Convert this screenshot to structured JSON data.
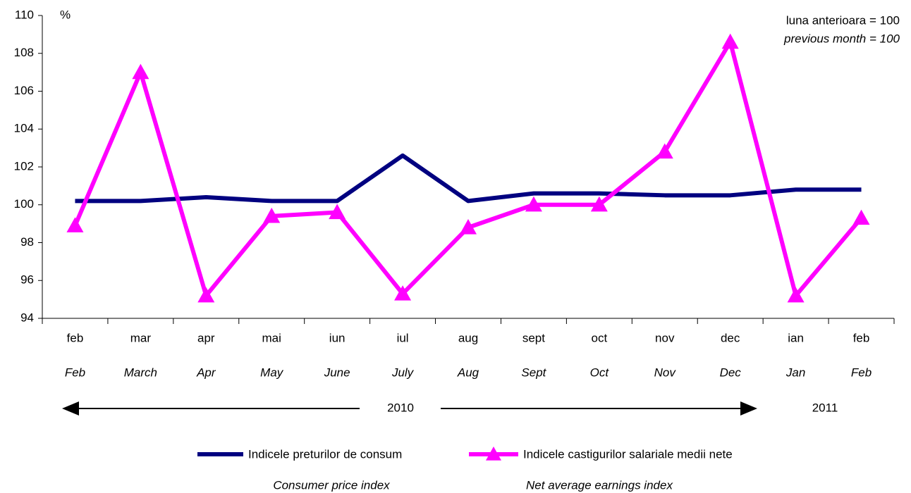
{
  "chart_data": {
    "type": "line",
    "y_unit": "%",
    "annotation": [
      "luna anterioara = 100",
      "previous month = 100"
    ],
    "categories": [
      "feb",
      "mar",
      "apr",
      "mai",
      "iun",
      "iul",
      "aug",
      "sept",
      "oct",
      "nov",
      "dec",
      "ian",
      "feb"
    ],
    "categories_en": [
      "Feb",
      "March",
      "Apr",
      "May",
      "June",
      "July",
      "Aug",
      "Sept",
      "Oct",
      "Nov",
      "Dec",
      "Jan",
      "Feb"
    ],
    "years": [
      "2010",
      "2011"
    ],
    "series": [
      {
        "name": "Indicele preturilor de consum",
        "name_en": "Consumer price index",
        "color": "#000080",
        "values": [
          100.2,
          100.2,
          100.4,
          100.2,
          100.2,
          102.6,
          100.2,
          100.6,
          100.6,
          100.5,
          100.5,
          100.8,
          100.8
        ]
      },
      {
        "name": "Indicele castigurilor salariale medii nete",
        "name_en": "Net average earnings index",
        "color": "#ff00ff",
        "values": [
          98.9,
          107.0,
          95.2,
          99.4,
          99.6,
          95.3,
          98.8,
          100.0,
          100.0,
          102.8,
          108.6,
          95.2,
          99.3
        ]
      }
    ],
    "ylim": [
      94,
      110
    ],
    "yticks": [
      94,
      96,
      98,
      100,
      102,
      104,
      106,
      108,
      110
    ]
  }
}
